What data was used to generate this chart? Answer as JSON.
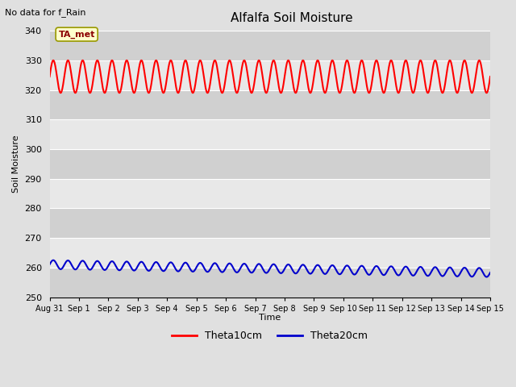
{
  "title": "Alfalfa Soil Moisture",
  "top_left_text": "No data for f_Rain",
  "ylabel": "Soil Moisture",
  "xlabel": "Time",
  "ylim": [
    250,
    340
  ],
  "yticks": [
    250,
    260,
    270,
    280,
    290,
    300,
    310,
    320,
    330,
    340
  ],
  "xtick_labels": [
    "Aug 31",
    "Sep 1",
    "Sep 2",
    "Sep 3",
    "Sep 4",
    "Sep 5",
    "Sep 6",
    "Sep 7",
    "Sep 8",
    "Sep 9",
    "Sep 10",
    "Sep 11",
    "Sep 12",
    "Sep 13",
    "Sep 14",
    "Sep 15"
  ],
  "legend_label_red": "Theta10cm",
  "legend_label_blue": "Theta20cm",
  "annotation_text": "TA_met",
  "red_color": "#FF0000",
  "blue_color": "#0000CC",
  "fig_bg_color": "#E0E0E0",
  "plot_bg_color": "#E8E8E8",
  "band_dark_color": "#D0D0D0",
  "band_light_color": "#E8E8E8",
  "n_days": 15,
  "red_mean": 324.5,
  "red_amplitude": 5.5,
  "red_period": 0.5,
  "red_phase": 0.0,
  "blue_mean": 261.0,
  "blue_amplitude": 1.5,
  "blue_period": 0.5,
  "blue_phase": 0.0,
  "blue_trend": -0.18
}
